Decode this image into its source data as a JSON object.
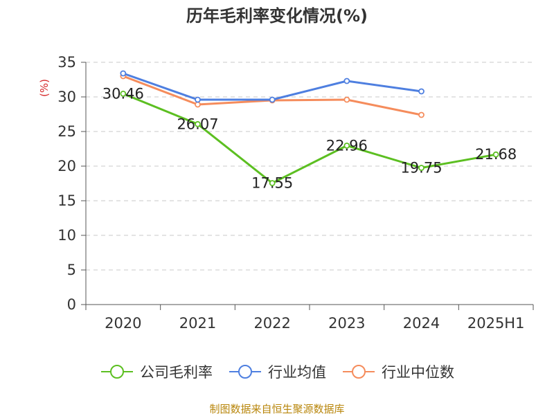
{
  "chart_data": {
    "type": "line",
    "title": "历年毛利率变化情况(%)",
    "ylabel": "(%)",
    "xlabel": "",
    "categories": [
      "2020",
      "2021",
      "2022",
      "2023",
      "2024",
      "2025H1"
    ],
    "ylim": [
      0,
      35
    ],
    "yticks": [
      0,
      5,
      10,
      15,
      20,
      25,
      30,
      35
    ],
    "grid": true,
    "legend_position": "bottom",
    "series": [
      {
        "name": "公司毛利率",
        "color": "#5cbf21",
        "values": [
          30.46,
          26.07,
          17.55,
          22.96,
          19.75,
          21.68
        ],
        "show_labels": true
      },
      {
        "name": "行业均值",
        "color": "#4e7fe0",
        "values": [
          33.4,
          29.6,
          29.6,
          32.3,
          30.8,
          null
        ],
        "show_labels": false
      },
      {
        "name": "行业中位数",
        "color": "#f58c5c",
        "values": [
          33.0,
          28.9,
          29.5,
          29.6,
          27.4,
          null
        ],
        "show_labels": false
      }
    ]
  },
  "source_note": "制图数据来自恒生聚源数据库"
}
